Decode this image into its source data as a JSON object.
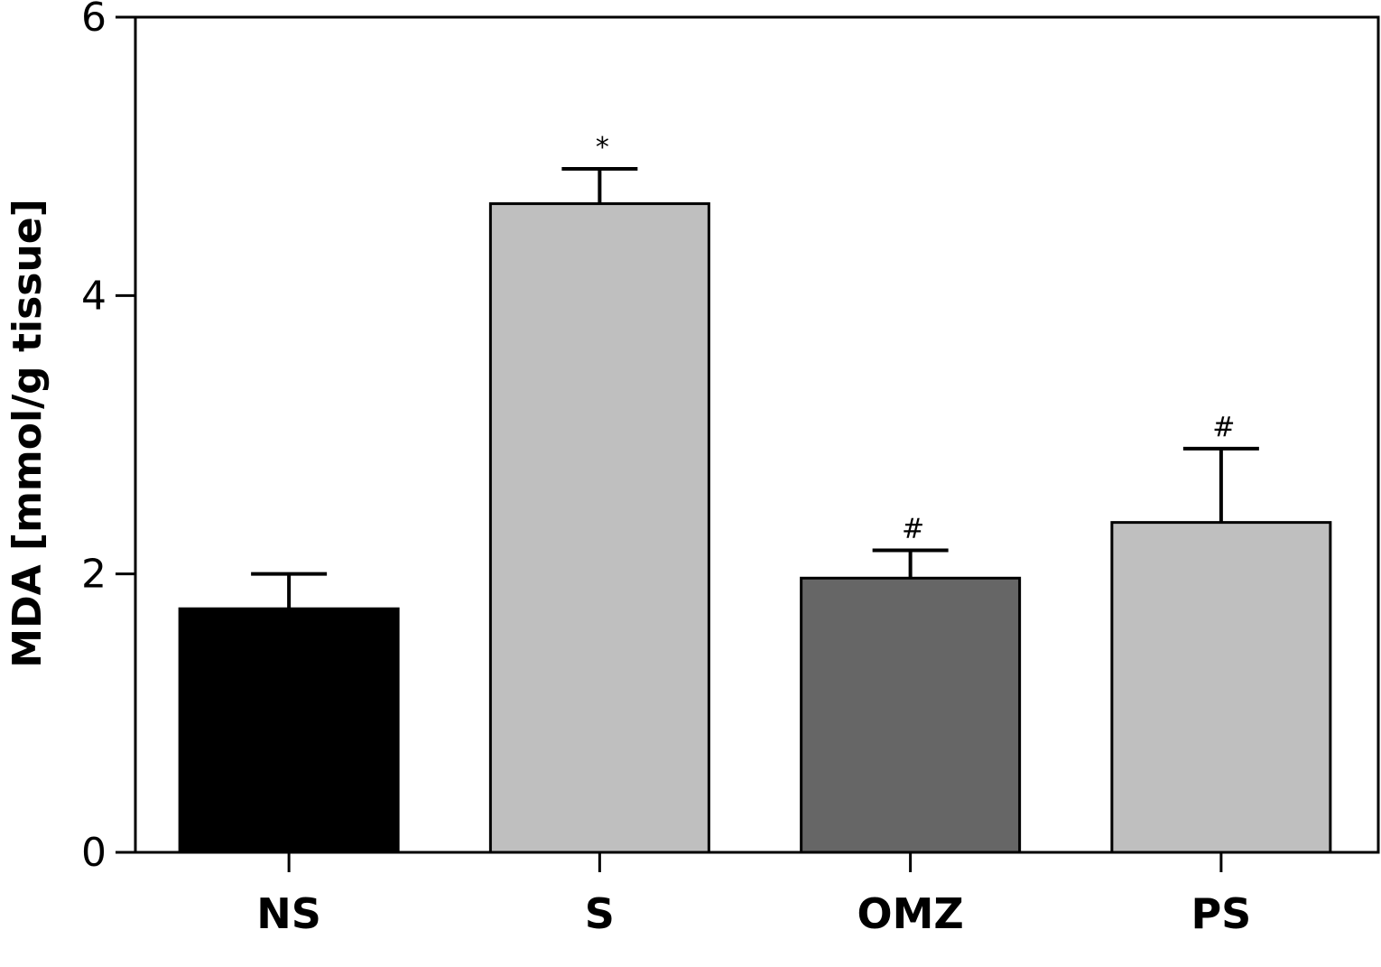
{
  "chart_data": {
    "type": "bar",
    "categories": [
      "NS",
      "S",
      "OMZ",
      "PS"
    ],
    "values": [
      1.75,
      4.66,
      1.97,
      2.37
    ],
    "errors": [
      0.25,
      0.25,
      0.2,
      0.53
    ],
    "annotations": [
      "",
      "*",
      "#",
      "#"
    ],
    "bar_colors": [
      "#000000",
      "#bfbfbf",
      "#666666",
      "#bfbfbf"
    ],
    "title": "",
    "xlabel": "",
    "ylabel": "MDA [mmol/g tissue]",
    "ylim": [
      0,
      6
    ],
    "yticks": [
      0,
      2,
      4,
      6
    ],
    "grid": false
  }
}
